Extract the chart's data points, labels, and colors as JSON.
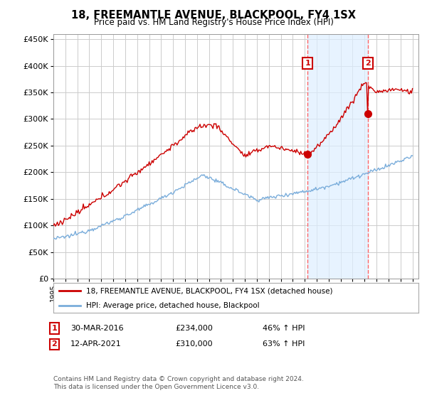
{
  "title": "18, FREEMANTLE AVENUE, BLACKPOOL, FY4 1SX",
  "subtitle": "Price paid vs. HM Land Registry's House Price Index (HPI)",
  "legend_line1": "18, FREEMANTLE AVENUE, BLACKPOOL, FY4 1SX (detached house)",
  "legend_line2": "HPI: Average price, detached house, Blackpool",
  "annotation1_date": "30-MAR-2016",
  "annotation1_price": 234000,
  "annotation1_price_str": "£234,000",
  "annotation1_hpi": "46% ↑ HPI",
  "annotation1_year": 2016.25,
  "annotation2_date": "12-APR-2021",
  "annotation2_price": 310000,
  "annotation2_price_str": "£310,000",
  "annotation2_hpi": "63% ↑ HPI",
  "annotation2_year": 2021.28,
  "footer": "Contains HM Land Registry data © Crown copyright and database right 2024.\nThis data is licensed under the Open Government Licence v3.0.",
  "hpi_color": "#7aaddb",
  "price_color": "#cc0000",
  "vline_color": "#ff6666",
  "shade_color": "#ddeeff",
  "ylim": [
    0,
    460000
  ],
  "yticks": [
    0,
    50000,
    100000,
    150000,
    200000,
    250000,
    300000,
    350000,
    400000,
    450000
  ],
  "background_color": "#ffffff",
  "grid_color": "#cccccc",
  "year_start": 1995,
  "year_end": 2025
}
